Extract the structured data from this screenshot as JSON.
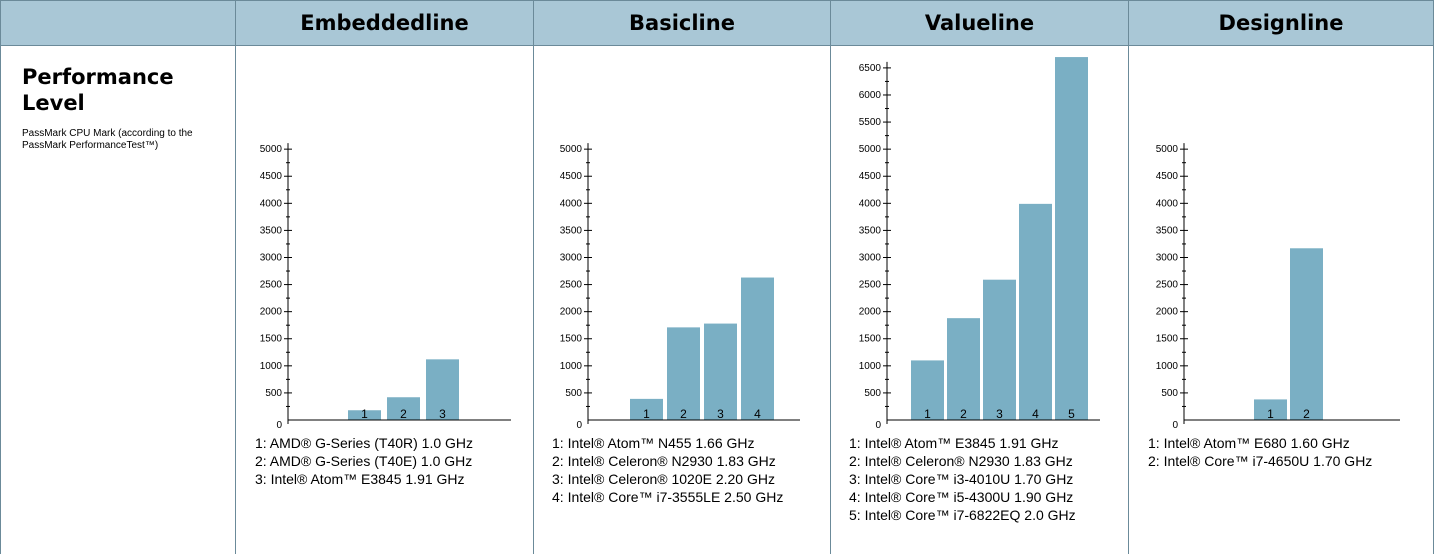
{
  "header": {
    "columns": [
      "Embeddedline",
      "Basicline",
      "Valueline",
      "Designline"
    ]
  },
  "row": {
    "title": "Performance Level",
    "subtitle": "PassMark CPU Mark (according to the PassMark PerformanceTest™)"
  },
  "colors": {
    "header_bg": "#a9c7d6",
    "bar": "#7aafc4",
    "grid_line": "#6b8a99"
  },
  "chart_data": [
    {
      "type": "bar",
      "panel": "Embeddedline",
      "categories": [
        "1",
        "2",
        "3"
      ],
      "values": [
        180,
        420,
        1120
      ],
      "ylim": [
        0,
        5000
      ],
      "yticks": [
        0,
        500,
        1000,
        1500,
        2000,
        2500,
        3000,
        3500,
        4000,
        4500,
        5000
      ],
      "legend": [
        "1: AMD® G-Series (T40R) 1.0 GHz",
        "2: AMD® G-Series (T40E) 1.0 GHz",
        "3: Intel® Atom™ E3845 1.91 GHz"
      ]
    },
    {
      "type": "bar",
      "panel": "Basicline",
      "categories": [
        "1",
        "2",
        "3",
        "4"
      ],
      "values": [
        390,
        1710,
        1780,
        2630
      ],
      "ylim": [
        0,
        5000
      ],
      "yticks": [
        0,
        500,
        1000,
        1500,
        2000,
        2500,
        3000,
        3500,
        4000,
        4500,
        5000
      ],
      "legend": [
        "1: Intel® Atom™ N455 1.66 GHz",
        "2: Intel® Celeron® N2930 1.83 GHz",
        "3: Intel® Celeron® 1020E 2.20 GHz",
        "4: Intel® Core™ i7-3555LE 2.50 GHz"
      ]
    },
    {
      "type": "bar",
      "panel": "Valueline",
      "categories": [
        "1",
        "2",
        "3",
        "4",
        "5"
      ],
      "values": [
        1100,
        1880,
        2590,
        3990,
        6700
      ],
      "ylim": [
        0,
        6500
      ],
      "yticks": [
        0,
        500,
        1000,
        1500,
        2000,
        2500,
        3000,
        3500,
        4000,
        4500,
        5000,
        5500,
        6000,
        6500
      ],
      "legend": [
        "1: Intel® Atom™ E3845 1.91 GHz",
        "2: Intel® Celeron® N2930 1.83 GHz",
        "3: Intel® Core™ i3-4010U 1.70 GHz",
        "4: Intel® Core™ i5-4300U 1.90 GHz",
        "5: Intel® Core™ i7-6822EQ 2.0 GHz"
      ]
    },
    {
      "type": "bar",
      "panel": "Designline",
      "categories": [
        "1",
        "2"
      ],
      "values": [
        380,
        3170
      ],
      "ylim": [
        0,
        5000
      ],
      "yticks": [
        0,
        500,
        1000,
        1500,
        2000,
        2500,
        3000,
        3500,
        4000,
        4500,
        5000
      ],
      "legend": [
        "1: Intel® Atom™ E680 1.60 GHz",
        "2: Intel® Core™ i7-4650U 1.70 GHz"
      ]
    }
  ]
}
